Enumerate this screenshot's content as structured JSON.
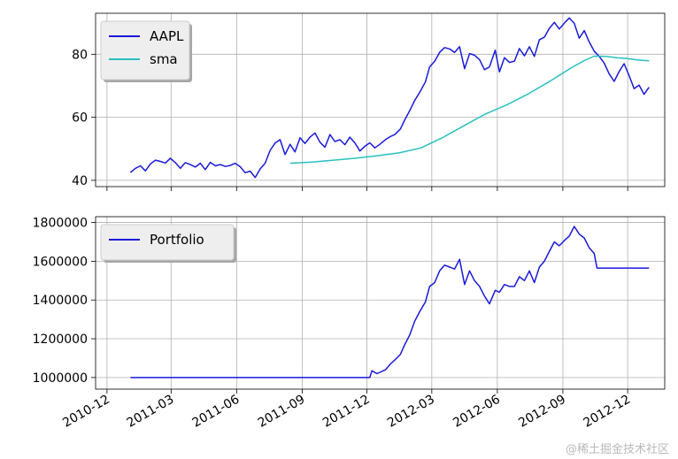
{
  "chart_data": [
    {
      "type": "line",
      "title": "",
      "xlabel": "",
      "ylabel": "",
      "ylim": [
        38,
        93
      ],
      "y_ticks": [
        "40",
        "60",
        "80"
      ],
      "x_ticks": [
        "2010-12",
        "2011-03",
        "2011-06",
        "2011-09",
        "2011-12",
        "2012-03",
        "2012-06",
        "2012-09",
        "2012-12"
      ],
      "grid": true,
      "legend_placement": "top-left",
      "series": [
        {
          "name": "AAPL",
          "color": "#1a1adb",
          "points": [
            [
              "2011-01-03",
              42.5
            ],
            [
              "2011-01-10",
              43.8
            ],
            [
              "2011-01-17",
              44.6
            ],
            [
              "2011-01-24",
              43.0
            ],
            [
              "2011-01-31",
              45.2
            ],
            [
              "2011-02-07",
              46.4
            ],
            [
              "2011-02-14",
              46.0
            ],
            [
              "2011-02-21",
              45.5
            ],
            [
              "2011-02-28",
              47.0
            ],
            [
              "2011-03-07",
              45.6
            ],
            [
              "2011-03-14",
              43.8
            ],
            [
              "2011-03-21",
              45.6
            ],
            [
              "2011-03-28",
              45.0
            ],
            [
              "2011-04-04",
              44.2
            ],
            [
              "2011-04-11",
              45.4
            ],
            [
              "2011-04-18",
              43.4
            ],
            [
              "2011-04-25",
              45.7
            ],
            [
              "2011-05-02",
              44.6
            ],
            [
              "2011-05-09",
              45.0
            ],
            [
              "2011-05-16",
              44.4
            ],
            [
              "2011-05-23",
              44.7
            ],
            [
              "2011-05-30",
              45.4
            ],
            [
              "2011-06-06",
              44.3
            ],
            [
              "2011-06-13",
              42.4
            ],
            [
              "2011-06-20",
              42.9
            ],
            [
              "2011-06-27",
              40.9
            ],
            [
              "2011-07-04",
              43.6
            ],
            [
              "2011-07-11",
              45.4
            ],
            [
              "2011-07-18",
              49.5
            ],
            [
              "2011-07-25",
              51.8
            ],
            [
              "2011-08-01",
              52.9
            ],
            [
              "2011-08-08",
              48.2
            ],
            [
              "2011-08-15",
              51.4
            ],
            [
              "2011-08-22",
              49.0
            ],
            [
              "2011-08-29",
              53.5
            ],
            [
              "2011-09-05",
              51.7
            ],
            [
              "2011-09-12",
              53.7
            ],
            [
              "2011-09-19",
              55.0
            ],
            [
              "2011-09-26",
              52.1
            ],
            [
              "2011-10-03",
              50.5
            ],
            [
              "2011-10-10",
              54.5
            ],
            [
              "2011-10-17",
              52.3
            ],
            [
              "2011-10-24",
              52.9
            ],
            [
              "2011-10-31",
              51.3
            ],
            [
              "2011-11-07",
              53.7
            ],
            [
              "2011-11-14",
              51.9
            ],
            [
              "2011-11-21",
              49.3
            ],
            [
              "2011-11-28",
              50.8
            ],
            [
              "2011-12-05",
              51.9
            ],
            [
              "2011-12-12",
              50.3
            ],
            [
              "2011-12-19",
              51.4
            ],
            [
              "2011-12-27",
              52.9
            ],
            [
              "2012-01-03",
              53.9
            ],
            [
              "2012-01-09",
              54.5
            ],
            [
              "2012-01-17",
              56.3
            ],
            [
              "2012-01-23",
              59.2
            ],
            [
              "2012-01-30",
              62.1
            ],
            [
              "2012-02-06",
              65.3
            ],
            [
              "2012-02-13",
              67.9
            ],
            [
              "2012-02-21",
              71.2
            ],
            [
              "2012-02-27",
              76.0
            ],
            [
              "2012-03-05",
              77.8
            ],
            [
              "2012-03-12",
              80.6
            ],
            [
              "2012-03-19",
              82.1
            ],
            [
              "2012-03-26",
              81.7
            ],
            [
              "2012-04-02",
              80.6
            ],
            [
              "2012-04-09",
              82.4
            ],
            [
              "2012-04-16",
              75.4
            ],
            [
              "2012-04-23",
              80.2
            ],
            [
              "2012-04-30",
              79.7
            ],
            [
              "2012-05-07",
              78.3
            ],
            [
              "2012-05-14",
              75.1
            ],
            [
              "2012-05-21",
              76.0
            ],
            [
              "2012-05-29",
              81.3
            ],
            [
              "2012-06-04",
              74.4
            ],
            [
              "2012-06-11",
              78.9
            ],
            [
              "2012-06-18",
              77.4
            ],
            [
              "2012-06-25",
              77.8
            ],
            [
              "2012-07-02",
              81.8
            ],
            [
              "2012-07-09",
              79.5
            ],
            [
              "2012-07-16",
              82.4
            ],
            [
              "2012-07-23",
              79.3
            ],
            [
              "2012-07-30",
              84.6
            ],
            [
              "2012-08-06",
              85.4
            ],
            [
              "2012-08-13",
              88.2
            ],
            [
              "2012-08-20",
              90.1
            ],
            [
              "2012-08-27",
              88.0
            ],
            [
              "2012-09-04",
              90.1
            ],
            [
              "2012-09-10",
              91.5
            ],
            [
              "2012-09-17",
              89.8
            ],
            [
              "2012-09-24",
              85.1
            ],
            [
              "2012-10-01",
              87.5
            ],
            [
              "2012-10-08",
              83.9
            ],
            [
              "2012-10-15",
              81.0
            ],
            [
              "2012-10-22",
              79.3
            ],
            [
              "2012-10-29",
              77.2
            ],
            [
              "2012-11-05",
              73.8
            ],
            [
              "2012-11-12",
              71.4
            ],
            [
              "2012-11-19",
              74.5
            ],
            [
              "2012-11-26",
              77.0
            ],
            [
              "2012-12-03",
              73.2
            ],
            [
              "2012-12-10",
              69.1
            ],
            [
              "2012-12-17",
              70.2
            ],
            [
              "2012-12-24",
              67.3
            ],
            [
              "2012-12-31",
              69.5
            ]
          ]
        },
        {
          "name": "sma",
          "color": "#29bfbf",
          "points": [
            [
              "2011-08-15",
              45.4
            ],
            [
              "2011-09-15",
              45.8
            ],
            [
              "2011-10-15",
              46.4
            ],
            [
              "2011-11-15",
              47.0
            ],
            [
              "2011-12-15",
              47.8
            ],
            [
              "2012-01-15",
              48.7
            ],
            [
              "2012-02-15",
              50.3
            ],
            [
              "2012-03-15",
              53.4
            ],
            [
              "2012-04-15",
              57.3
            ],
            [
              "2012-05-15",
              61.0
            ],
            [
              "2012-06-15",
              64.0
            ],
            [
              "2012-07-15",
              67.5
            ],
            [
              "2012-08-15",
              71.6
            ],
            [
              "2012-09-15",
              76.0
            ],
            [
              "2012-10-01",
              78.0
            ],
            [
              "2012-10-15",
              79.4
            ],
            [
              "2012-11-01",
              79.3
            ],
            [
              "2012-11-15",
              78.9
            ],
            [
              "2012-12-01",
              78.6
            ],
            [
              "2012-12-15",
              78.2
            ],
            [
              "2012-12-31",
              77.9
            ]
          ]
        }
      ]
    },
    {
      "type": "line",
      "title": "",
      "xlabel": "",
      "ylabel": "",
      "ylim": [
        940000,
        1830000
      ],
      "y_ticks": [
        "1000000",
        "1200000",
        "1400000",
        "1600000",
        "1800000"
      ],
      "x_ticks": [
        "2010-12",
        "2011-03",
        "2011-06",
        "2011-09",
        "2011-12",
        "2012-03",
        "2012-06",
        "2012-09",
        "2012-12"
      ],
      "grid": true,
      "legend_placement": "top-left",
      "series": [
        {
          "name": "Portfolio",
          "color": "#1a1adb",
          "points": [
            [
              "2011-01-03",
              1000000
            ],
            [
              "2011-12-05",
              1000000
            ],
            [
              "2011-12-08",
              1035000
            ],
            [
              "2011-12-15",
              1020000
            ],
            [
              "2011-12-27",
              1040000
            ],
            [
              "2012-01-03",
              1070000
            ],
            [
              "2012-01-09",
              1090000
            ],
            [
              "2012-01-17",
              1120000
            ],
            [
              "2012-01-23",
              1170000
            ],
            [
              "2012-01-30",
              1220000
            ],
            [
              "2012-02-06",
              1290000
            ],
            [
              "2012-02-13",
              1340000
            ],
            [
              "2012-02-21",
              1390000
            ],
            [
              "2012-02-27",
              1470000
            ],
            [
              "2012-03-05",
              1490000
            ],
            [
              "2012-03-12",
              1550000
            ],
            [
              "2012-03-19",
              1580000
            ],
            [
              "2012-03-26",
              1570000
            ],
            [
              "2012-04-02",
              1560000
            ],
            [
              "2012-04-09",
              1610000
            ],
            [
              "2012-04-16",
              1480000
            ],
            [
              "2012-04-23",
              1550000
            ],
            [
              "2012-04-30",
              1500000
            ],
            [
              "2012-05-07",
              1470000
            ],
            [
              "2012-05-14",
              1420000
            ],
            [
              "2012-05-21",
              1380000
            ],
            [
              "2012-05-29",
              1450000
            ],
            [
              "2012-06-04",
              1440000
            ],
            [
              "2012-06-11",
              1480000
            ],
            [
              "2012-06-18",
              1470000
            ],
            [
              "2012-06-25",
              1470000
            ],
            [
              "2012-07-02",
              1520000
            ],
            [
              "2012-07-09",
              1500000
            ],
            [
              "2012-07-16",
              1550000
            ],
            [
              "2012-07-23",
              1490000
            ],
            [
              "2012-07-30",
              1570000
            ],
            [
              "2012-08-06",
              1600000
            ],
            [
              "2012-08-13",
              1650000
            ],
            [
              "2012-08-20",
              1700000
            ],
            [
              "2012-08-27",
              1680000
            ],
            [
              "2012-09-04",
              1710000
            ],
            [
              "2012-09-10",
              1730000
            ],
            [
              "2012-09-17",
              1780000
            ],
            [
              "2012-09-24",
              1740000
            ],
            [
              "2012-10-01",
              1720000
            ],
            [
              "2012-10-08",
              1670000
            ],
            [
              "2012-10-15",
              1640000
            ],
            [
              "2012-10-19",
              1565000
            ],
            [
              "2012-12-31",
              1565000
            ]
          ]
        }
      ]
    }
  ],
  "watermark": "@稀土掘金技术社区"
}
